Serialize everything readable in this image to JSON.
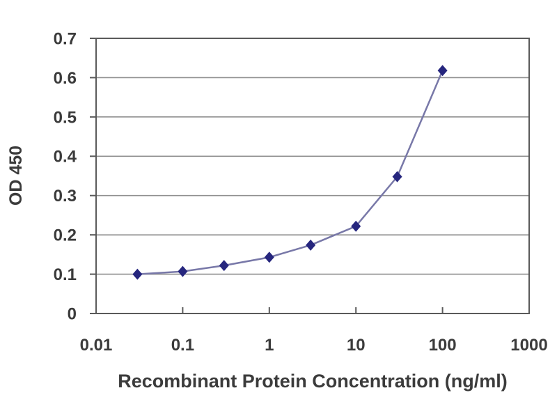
{
  "chart_data": {
    "type": "line",
    "title": "",
    "xlabel": "Recombinant Protein Concentration (ng/ml)",
    "ylabel": "OD 450",
    "x_scale": "log",
    "xlim": [
      0.01,
      1000
    ],
    "ylim": [
      0,
      0.7
    ],
    "x_ticks": [
      0.01,
      0.1,
      1,
      10,
      100,
      1000
    ],
    "x_tick_labels": [
      "0.01",
      "0.1",
      "1",
      "10",
      "100",
      "1000"
    ],
    "y_ticks": [
      0,
      0.1,
      0.2,
      0.3,
      0.4,
      0.5,
      0.6,
      0.7
    ],
    "y_tick_labels": [
      "0",
      "0.1",
      "0.2",
      "0.3",
      "0.4",
      "0.5",
      "0.6",
      "0.7"
    ],
    "grid": "horizontal",
    "legend": "none",
    "series": [
      {
        "name": "OD 450",
        "marker": "diamond",
        "x": [
          0.03,
          0.1,
          0.3,
          1,
          3,
          10,
          30,
          100
        ],
        "y": [
          0.1,
          0.107,
          0.122,
          0.143,
          0.174,
          0.222,
          0.348,
          0.618
        ]
      }
    ]
  },
  "colors": {
    "background": "#ffffff",
    "line": "#7878a8",
    "marker": "#26267e",
    "grid": "#8f8f8f",
    "frame": "#5a5a5a",
    "text": "#3b3b3b"
  }
}
